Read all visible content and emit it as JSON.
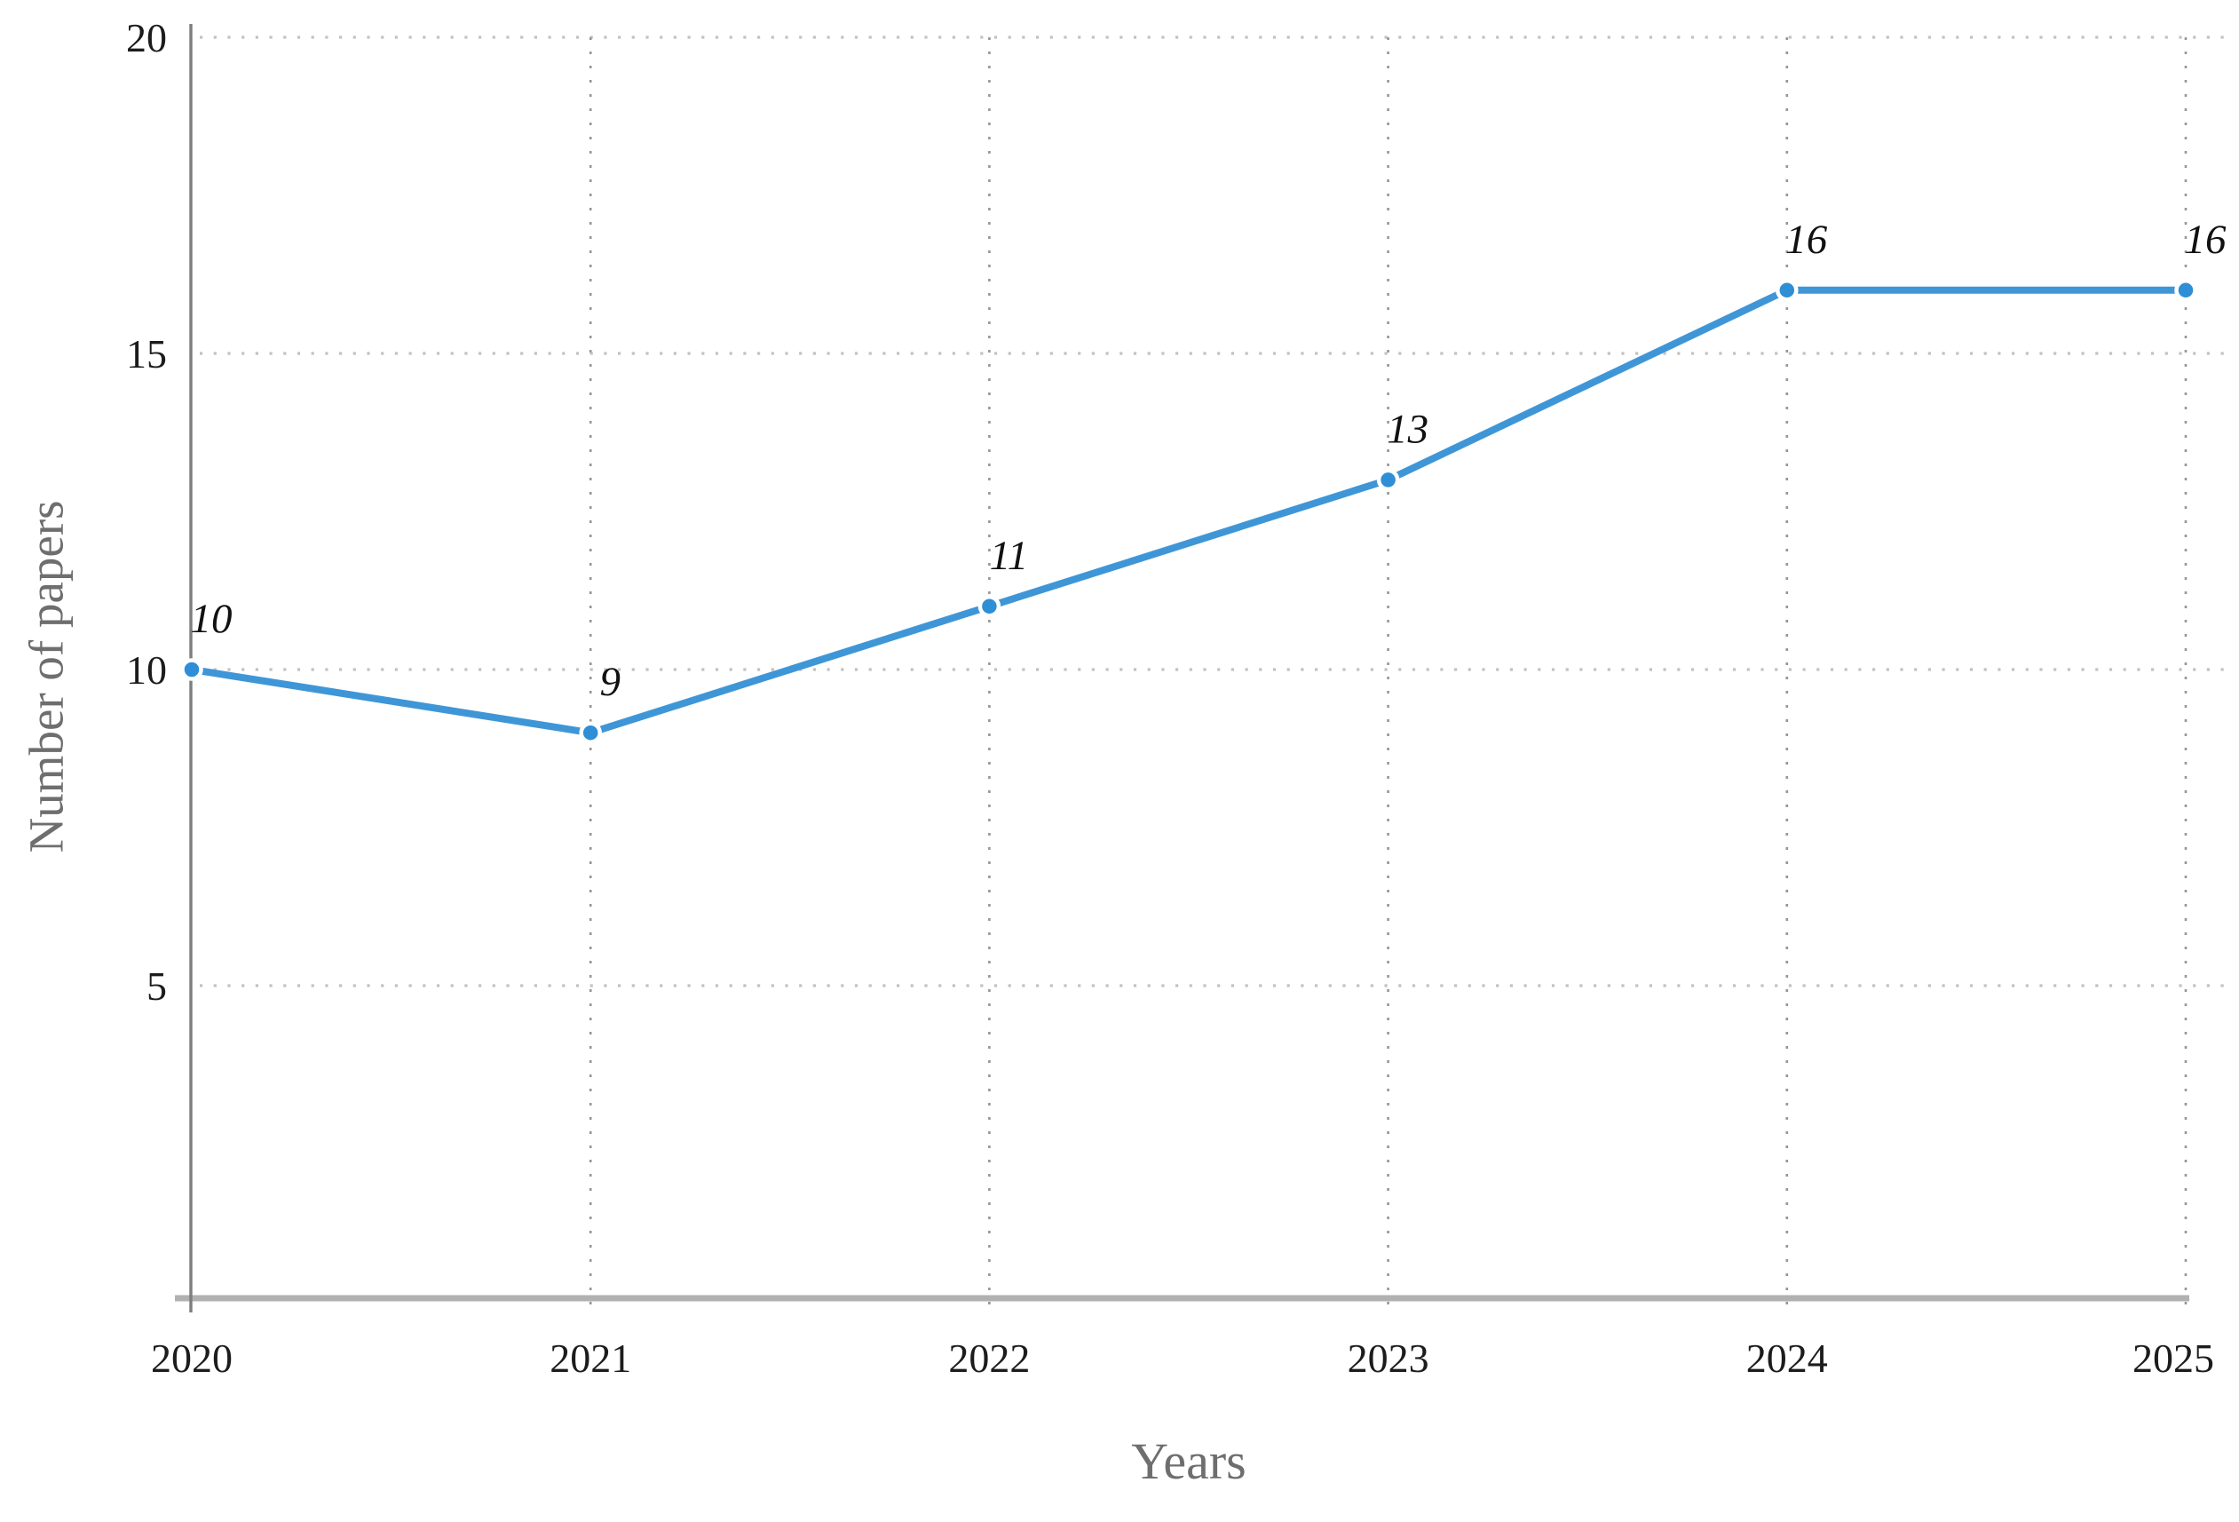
{
  "chart_data": {
    "type": "line",
    "categories": [
      "2020",
      "2021",
      "2022",
      "2023",
      "2024",
      "2025"
    ],
    "series": [
      {
        "name": "Number of papers",
        "values": [
          10,
          9,
          11,
          13,
          16,
          16
        ]
      }
    ],
    "point_labels": [
      "10",
      "9",
      "11",
      "13",
      "16",
      "16"
    ],
    "title": "",
    "xlabel": "Years",
    "ylabel": "Number of papers",
    "ylim": [
      0,
      20
    ],
    "yticks": [
      5,
      10,
      15,
      20
    ],
    "grid": "dotted, horizontal at yticks and vertical at each year",
    "legend_position": "none",
    "colors": {
      "line": "#3f96d7",
      "marker": "#2e8ed6",
      "h_gridline": "#c2c2c2",
      "v_gridline": "#969696",
      "y_axis_line": "#7d7d7d",
      "x_axis_line": "#b1b1b1",
      "tick_label": "#1c1c1c",
      "point_label": "#111111",
      "axis_title": "#6e6e6e",
      "background": "#ffffff"
    }
  }
}
